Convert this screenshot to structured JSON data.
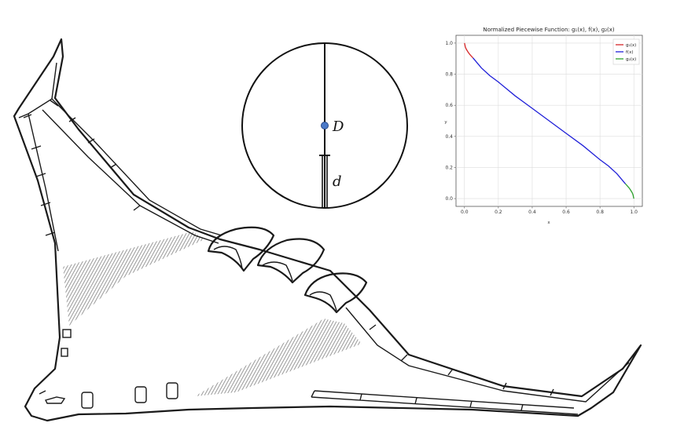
{
  "circle_diagram": {
    "label_D": "D",
    "label_d": "d",
    "point_color": "#4a79c8"
  },
  "chart_data": {
    "type": "line",
    "title": "Normalized Piecewise Function: g₁(x), f(x), g₂(x)",
    "xlabel": "x",
    "ylabel": "y",
    "xlim": [
      -0.05,
      1.05
    ],
    "ylim": [
      -0.05,
      1.05
    ],
    "grid": true,
    "legend_position": "top-right",
    "xticks": [
      "0.0",
      "0.2",
      "0.4",
      "0.6",
      "0.8",
      "1.0"
    ],
    "yticks": [
      "0.0",
      "0.2",
      "0.4",
      "0.6",
      "0.8",
      "1.0"
    ],
    "series": [
      {
        "name": "g₁(x)",
        "color": "#d62728",
        "x": [
          0.0,
          0.005,
          0.01,
          0.02,
          0.03,
          0.04,
          0.05
        ],
        "y": [
          1.0,
          0.975,
          0.962,
          0.944,
          0.929,
          0.917,
          0.905
        ]
      },
      {
        "name": "f(x)",
        "color": "#1f1fd8",
        "x": [
          0.05,
          0.1,
          0.15,
          0.2,
          0.3,
          0.4,
          0.5,
          0.6,
          0.7,
          0.8,
          0.85,
          0.9,
          0.95
        ],
        "y": [
          0.905,
          0.84,
          0.79,
          0.75,
          0.66,
          0.58,
          0.5,
          0.42,
          0.34,
          0.25,
          0.21,
          0.16,
          0.095
        ]
      },
      {
        "name": "g₂(x)",
        "color": "#2ca02c",
        "x": [
          0.95,
          0.96,
          0.97,
          0.98,
          0.99,
          0.995,
          1.0
        ],
        "y": [
          0.095,
          0.083,
          0.071,
          0.056,
          0.038,
          0.025,
          0.0
        ]
      }
    ]
  }
}
